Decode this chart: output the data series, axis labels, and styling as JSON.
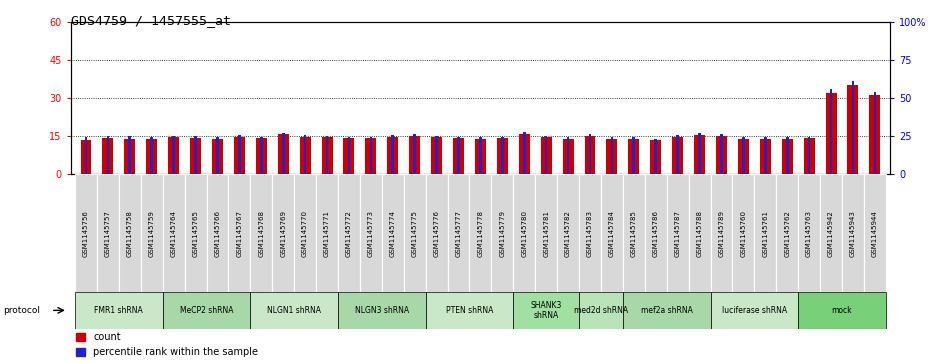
{
  "title": "GDS4759 / 1457555_at",
  "samples": [
    "GSM1145756",
    "GSM1145757",
    "GSM1145758",
    "GSM1145759",
    "GSM1145764",
    "GSM1145765",
    "GSM1145766",
    "GSM1145767",
    "GSM1145768",
    "GSM1145769",
    "GSM1145770",
    "GSM1145771",
    "GSM1145772",
    "GSM1145773",
    "GSM1145774",
    "GSM1145775",
    "GSM1145776",
    "GSM1145777",
    "GSM1145778",
    "GSM1145779",
    "GSM1145780",
    "GSM1145781",
    "GSM1145782",
    "GSM1145783",
    "GSM1145784",
    "GSM1145785",
    "GSM1145786",
    "GSM1145787",
    "GSM1145788",
    "GSM1145789",
    "GSM1145760",
    "GSM1145761",
    "GSM1145762",
    "GSM1145763",
    "GSM1145942",
    "GSM1145943",
    "GSM1145944"
  ],
  "counts": [
    13.5,
    14.2,
    14.0,
    14.0,
    14.5,
    14.3,
    13.8,
    14.8,
    14.2,
    15.8,
    14.8,
    14.5,
    14.2,
    14.3,
    14.8,
    15.0,
    14.5,
    14.3,
    14.0,
    14.2,
    16.0,
    14.5,
    14.0,
    15.0,
    13.8,
    14.0,
    13.6,
    14.8,
    15.5,
    15.2,
    13.8,
    14.0,
    13.8,
    14.2,
    32.0,
    35.0,
    31.0
  ],
  "percentile_heights": [
    14.5,
    15.0,
    15.0,
    14.8,
    15.2,
    15.0,
    14.5,
    15.5,
    14.8,
    16.2,
    15.5,
    15.2,
    14.8,
    14.8,
    15.5,
    15.8,
    15.0,
    14.8,
    14.5,
    14.8,
    16.5,
    15.2,
    14.5,
    15.8,
    14.5,
    14.5,
    14.0,
    15.5,
    16.2,
    16.0,
    14.5,
    14.5,
    14.5,
    14.8,
    33.5,
    36.5,
    32.5
  ],
  "protocols": [
    {
      "label": "FMR1 shRNA",
      "start": 0,
      "end": 4,
      "color": "#c8e8c8"
    },
    {
      "label": "MeCP2 shRNA",
      "start": 4,
      "end": 8,
      "color": "#a8d8a8"
    },
    {
      "label": "NLGN1 shRNA",
      "start": 8,
      "end": 12,
      "color": "#c8e8c8"
    },
    {
      "label": "NLGN3 shRNA",
      "start": 12,
      "end": 16,
      "color": "#a8d8a8"
    },
    {
      "label": "PTEN shRNA",
      "start": 16,
      "end": 20,
      "color": "#c8e8c8"
    },
    {
      "label": "SHANK3\nshRNA",
      "start": 20,
      "end": 23,
      "color": "#a0e0a0"
    },
    {
      "label": "med2d shRNA",
      "start": 23,
      "end": 25,
      "color": "#b8e4b8"
    },
    {
      "label": "mef2a shRNA",
      "start": 25,
      "end": 29,
      "color": "#a8d8a8"
    },
    {
      "label": "luciferase shRNA",
      "start": 29,
      "end": 33,
      "color": "#c8e8c8"
    },
    {
      "label": "mock",
      "start": 33,
      "end": 37,
      "color": "#78d078"
    }
  ],
  "left_ylim": [
    0,
    60
  ],
  "right_ylim": [
    0,
    100
  ],
  "left_yticks": [
    0,
    15,
    30,
    45,
    60
  ],
  "right_yticks": [
    0,
    25,
    50,
    75,
    100
  ],
  "right_yticklabels": [
    "0",
    "25",
    "50",
    "75",
    "100%"
  ],
  "bar_color": "#cc0000",
  "percentile_color": "#2222cc",
  "background_color": "#ffffff"
}
